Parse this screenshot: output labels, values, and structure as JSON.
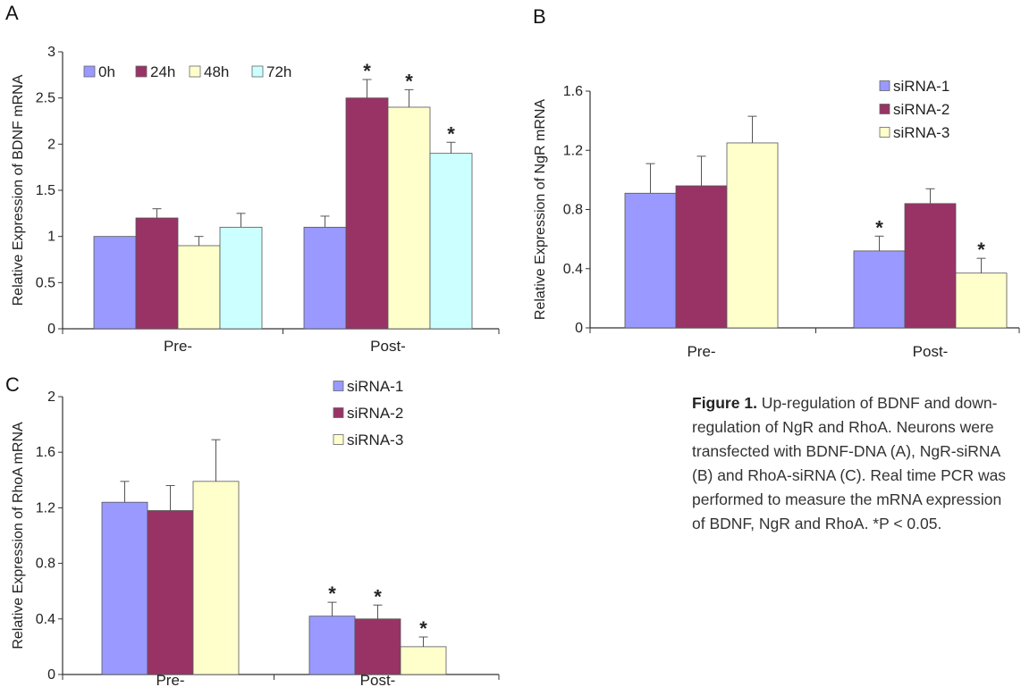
{
  "chart_data": [
    {
      "panel": "A",
      "type": "bar",
      "ylabel": "Relative Expression of BDNF mRNA",
      "categories": [
        "Pre-",
        "Post-"
      ],
      "ylim": [
        0,
        3
      ],
      "yticks": [
        "0",
        "0.5",
        "1",
        "1.5",
        "2",
        "2.5",
        "3"
      ],
      "legend_position": "top-left",
      "series": [
        {
          "name": "0h",
          "color": "#9999ff",
          "values": [
            1.0,
            1.1
          ],
          "errors": [
            0,
            0.12
          ],
          "significant": [
            false,
            false
          ]
        },
        {
          "name": "24h",
          "color": "#993366",
          "values": [
            1.2,
            2.5
          ],
          "errors": [
            0.1,
            0.2
          ],
          "significant": [
            false,
            true
          ]
        },
        {
          "name": "48h",
          "color": "#ffffcc",
          "values": [
            0.9,
            2.4
          ],
          "errors": [
            0.1,
            0.19
          ],
          "significant": [
            false,
            true
          ]
        },
        {
          "name": "72h",
          "color": "#ccffff",
          "values": [
            1.1,
            1.9
          ],
          "errors": [
            0.15,
            0.12
          ],
          "significant": [
            false,
            true
          ]
        }
      ]
    },
    {
      "panel": "B",
      "type": "bar",
      "ylabel": "Relative Expression of NgR mRNA",
      "categories": [
        "Pre-",
        "Post-"
      ],
      "ylim": [
        0,
        1.6
      ],
      "yticks": [
        "0",
        "0.4",
        "0.8",
        "1.2",
        "1.6"
      ],
      "legend_position": "top-right",
      "series": [
        {
          "name": "siRNA-1",
          "color": "#9999ff",
          "values": [
            0.91,
            0.52
          ],
          "errors": [
            0.2,
            0.1
          ],
          "significant": [
            false,
            true
          ]
        },
        {
          "name": "siRNA-2",
          "color": "#993366",
          "values": [
            0.96,
            0.84
          ],
          "errors": [
            0.2,
            0.1
          ],
          "significant": [
            false,
            false
          ]
        },
        {
          "name": "siRNA-3",
          "color": "#ffffcc",
          "values": [
            1.25,
            0.37
          ],
          "errors": [
            0.18,
            0.1
          ],
          "significant": [
            false,
            true
          ]
        }
      ]
    },
    {
      "panel": "C",
      "type": "bar",
      "ylabel": "Relative Expression of RhoA mRNA",
      "categories": [
        "Pre-",
        "Post-"
      ],
      "ylim": [
        0,
        2
      ],
      "yticks": [
        "0",
        "0.4",
        "0.8",
        "1.2",
        "1.6",
        "2"
      ],
      "legend_position": "top-right",
      "series": [
        {
          "name": "siRNA-1",
          "color": "#9999ff",
          "values": [
            1.24,
            0.42
          ],
          "errors": [
            0.15,
            0.1
          ],
          "significant": [
            false,
            true
          ]
        },
        {
          "name": "siRNA-2",
          "color": "#993366",
          "values": [
            1.18,
            0.4
          ],
          "errors": [
            0.18,
            0.1
          ],
          "significant": [
            false,
            true
          ]
        },
        {
          "name": "siRNA-3",
          "color": "#ffffcc",
          "values": [
            1.39,
            0.2
          ],
          "errors": [
            0.3,
            0.07
          ],
          "significant": [
            false,
            true
          ]
        }
      ]
    }
  ],
  "caption": {
    "label": "Figure 1.",
    "text": " Up-regulation of BDNF and down-regulation of NgR and RhoA. Neurons were transfected with BDNF-DNA (A), NgR-siRNA (B) and RhoA-siRNA (C). Real time PCR was performed to measure the mRNA expression of BDNF, NgR and RhoA. *P < 0.05."
  },
  "significance_marker": "*"
}
